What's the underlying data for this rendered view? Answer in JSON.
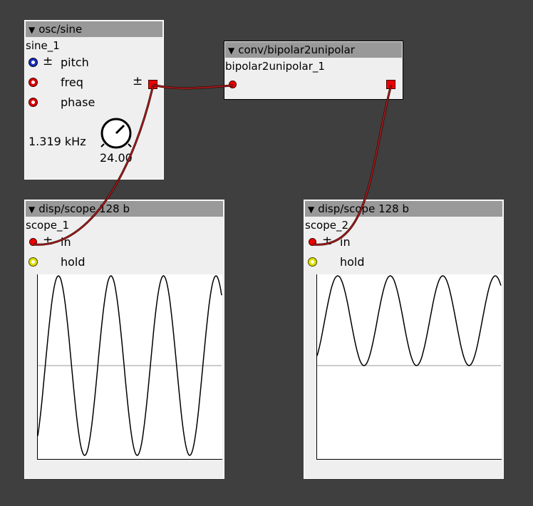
{
  "osc_sine": {
    "title": "osc/sine",
    "instance": "sine_1",
    "inlets": [
      {
        "label": "pitch",
        "plusminus": "±"
      },
      {
        "label": "freq"
      },
      {
        "label": "phase"
      }
    ],
    "outlet_plusminus": "±",
    "freq_display": "1.319 kHz",
    "knob_value": "24.00"
  },
  "bipolar": {
    "title": "conv/bipolar2unipolar",
    "instance": "bipolar2unipolar_1"
  },
  "scope1": {
    "title": "disp/scope 128 b",
    "instance": "scope_1",
    "in_label": "in",
    "in_plusminus": "±",
    "hold_label": "hold",
    "waveform": "bipolar-sine",
    "cycles": 3.5
  },
  "scope2": {
    "title": "disp/scope 128 b",
    "instance": "scope_2",
    "in_label": "in",
    "in_plusminus": "±",
    "hold_label": "hold",
    "waveform": "unipolar-sine",
    "cycles": 3.5
  },
  "colors": {
    "background": "#3f3f3f",
    "header": "#999999",
    "cable": "#8b1a1a",
    "inlet_red": "#ee0000",
    "inlet_blue": "#1830c0",
    "inlet_yellow": "#e0e000"
  }
}
